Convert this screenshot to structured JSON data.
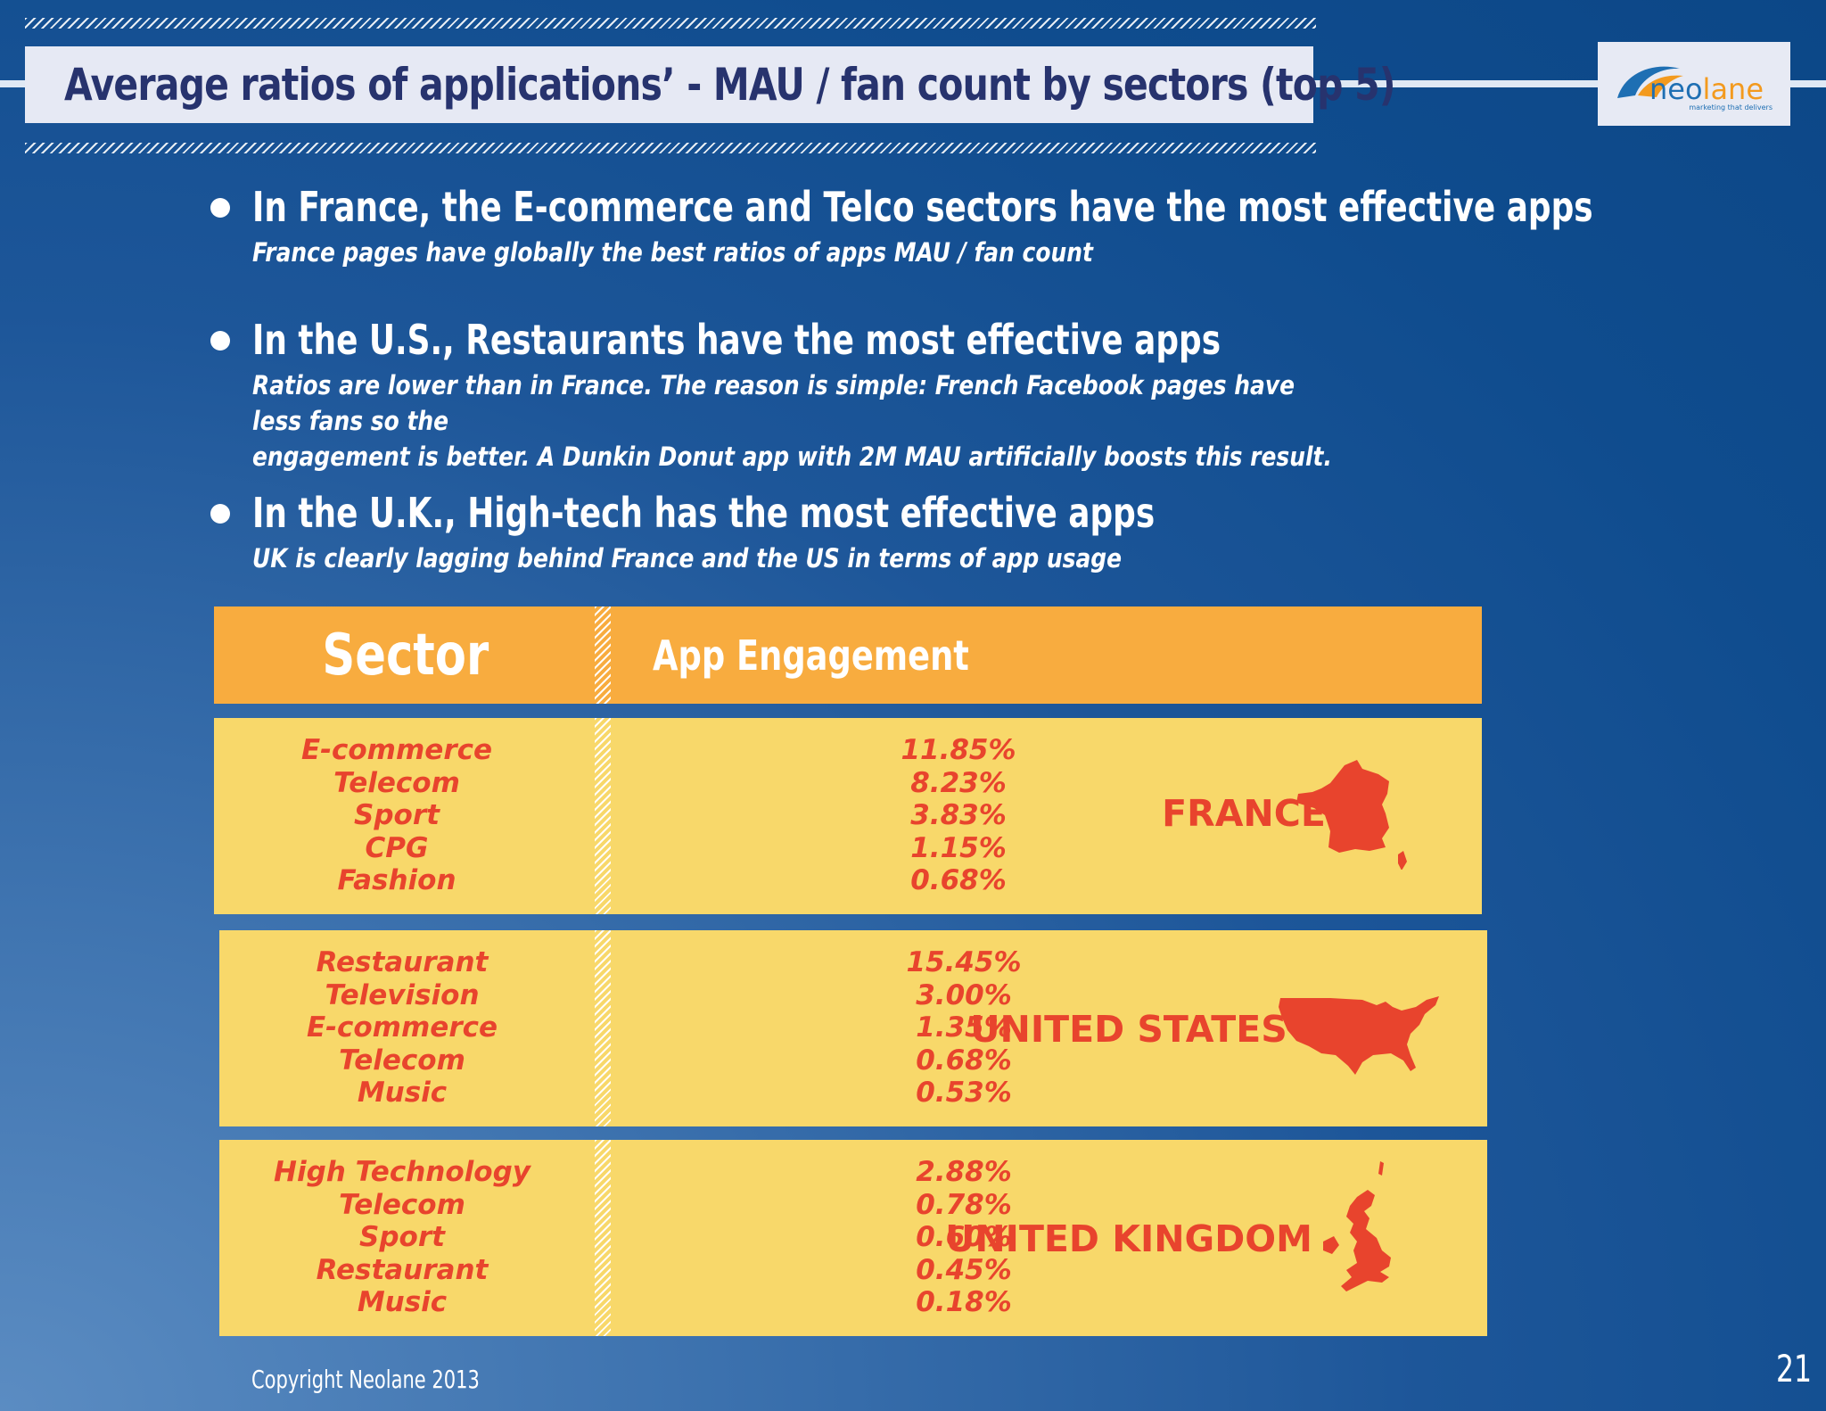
{
  "title": "Average ratios of applications’ - MAU / fan count by sectors (top 5)",
  "logo": {
    "name": "neolane",
    "tagline": "marketing that delivers",
    "colors": {
      "neo": "#1e6fb3",
      "lane": "#f39a1e"
    }
  },
  "bullets": [
    {
      "heading": "In France, the E-commerce and Telco sectors have the most effective apps",
      "lines": [
        "France pages have globally the best ratios of apps MAU / fan count"
      ]
    },
    {
      "heading": "In the U.S., Restaurants have the most effective apps",
      "lines": [
        "Ratios are lower than in France. The reason is simple: French Facebook pages have less fans so the",
        "engagement is better. A Dunkin Donut app with 2M MAU artificially boosts this result."
      ]
    },
    {
      "heading": "In the U.K., High-tech has the most effective apps",
      "lines": [
        "UK is clearly lagging behind France and the US in terms of app usage"
      ]
    }
  ],
  "table": {
    "header": {
      "sector": "Sector",
      "engagement": "App Engagement"
    },
    "groups": [
      {
        "country": "FRANCE",
        "map_icon": "france-map-icon",
        "sectors": [
          "E-commerce",
          "Telecom",
          "Sport",
          "CPG",
          "Fashion"
        ],
        "values": [
          "11.85%",
          "8.23%",
          "3.83%",
          "1.15%",
          "0.68%"
        ]
      },
      {
        "country": "UNITED STATES",
        "map_icon": "usa-map-icon",
        "sectors": [
          "Restaurant",
          "Television",
          "E-commerce",
          "Telecom",
          "Music"
        ],
        "values": [
          "15.45%",
          "3.00%",
          "1.35%",
          "0.68%",
          "0.53%"
        ]
      },
      {
        "country": "UNITED KINGDOM",
        "map_icon": "uk-map-icon",
        "sectors": [
          "High Technology",
          "Telecom",
          "Sport",
          "Restaurant",
          "Music"
        ],
        "values": [
          "2.88%",
          "0.78%",
          "0.60%",
          "0.45%",
          "0.18%"
        ]
      }
    ],
    "colors": {
      "header": "#f8ac3f",
      "panel": "#f8d86a",
      "accent_red": "#e8442d"
    }
  },
  "footer": {
    "copyright": "Copyright Neolane 2013",
    "page_number": "21"
  }
}
